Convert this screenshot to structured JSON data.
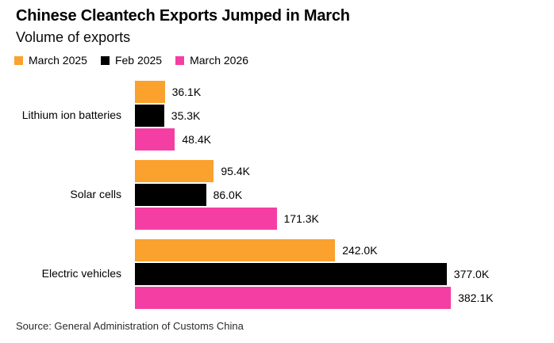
{
  "header": {
    "title": "Chinese Cleantech Exports Jumped in March",
    "subtitle": "Volume of exports"
  },
  "legend": [
    {
      "label": "March 2025",
      "color": "#FAA12E"
    },
    {
      "label": "Feb 2025",
      "color": "#000000"
    },
    {
      "label": "March 2026",
      "color": "#F53EA3"
    }
  ],
  "chart_data": {
    "type": "bar",
    "orientation": "horizontal",
    "title": "Chinese Cleantech Exports Jumped in March",
    "subtitle": "Volume of exports",
    "unit": "K",
    "categories": [
      "Lithium ion batteries",
      "Solar cells",
      "Electric vehicles"
    ],
    "series": [
      {
        "name": "March 2025",
        "color": "#FAA12E",
        "values": [
          36.1,
          95.4,
          242.0
        ],
        "labels": [
          "36.1K",
          "95.4K",
          "242.0K"
        ]
      },
      {
        "name": "Feb 2025",
        "color": "#000000",
        "values": [
          35.3,
          86.0,
          377.0
        ],
        "labels": [
          "35.3K",
          "86.0K",
          "377.0K"
        ]
      },
      {
        "name": "March 2026",
        "color": "#F53EA3",
        "values": [
          48.4,
          171.3,
          382.1
        ],
        "labels": [
          "48.4K",
          "171.3K",
          "382.1K"
        ]
      }
    ],
    "value_axis_range": [
      0,
      382.1
    ],
    "grid": false,
    "data_labels": true,
    "legend_position": "top",
    "xlabel": "",
    "ylabel": ""
  },
  "footer": {
    "source": "Source: General Administration of Customs China"
  }
}
